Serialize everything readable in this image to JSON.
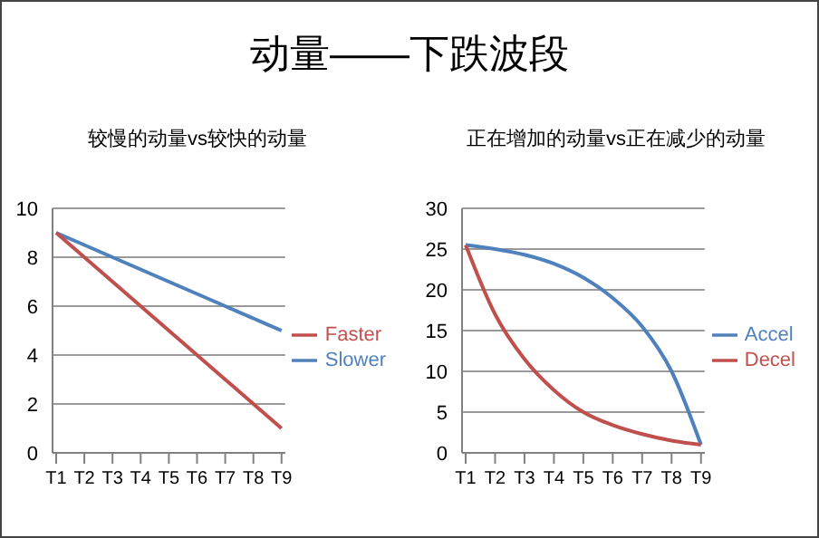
{
  "chart_data": [
    {
      "type": "line",
      "title": "动量——下跌波段",
      "subtitle": "较慢的动量vs较快的动量",
      "categories": [
        "T1",
        "T2",
        "T3",
        "T4",
        "T5",
        "T6",
        "T7",
        "T8",
        "T9"
      ],
      "series": [
        {
          "name": "Slower",
          "color": "#4f81bd",
          "values": [
            9,
            8.5,
            8,
            7.5,
            7,
            6.5,
            6,
            5.5,
            5
          ]
        },
        {
          "name": "Faster",
          "color": "#c0504d",
          "values": [
            9,
            8,
            7,
            6,
            5,
            4,
            3,
            2,
            1
          ]
        }
      ],
      "ylim": [
        0,
        10
      ],
      "yticks": [
        0,
        2,
        4,
        6,
        8,
        10
      ],
      "grid": "y",
      "legend": "right",
      "marker": "none"
    },
    {
      "type": "line",
      "subtitle": "正在增加的动量vs正在减少的动量",
      "categories": [
        "T1",
        "T2",
        "T3",
        "T4",
        "T5",
        "T6",
        "T7",
        "T8",
        "T9"
      ],
      "series": [
        {
          "name": "Accel",
          "color": "#4f81bd",
          "values": [
            25.5,
            25,
            24.3,
            23.2,
            21.5,
            19,
            15.5,
            10,
            1
          ]
        },
        {
          "name": "Decel",
          "color": "#c0504d",
          "values": [
            25.5,
            17,
            11.5,
            7.7,
            5,
            3.4,
            2.3,
            1.5,
            1
          ]
        }
      ],
      "ylim": [
        0,
        30
      ],
      "yticks": [
        0,
        5,
        10,
        15,
        20,
        25,
        30
      ],
      "grid": "y",
      "legend": "right",
      "marker": "none"
    }
  ]
}
